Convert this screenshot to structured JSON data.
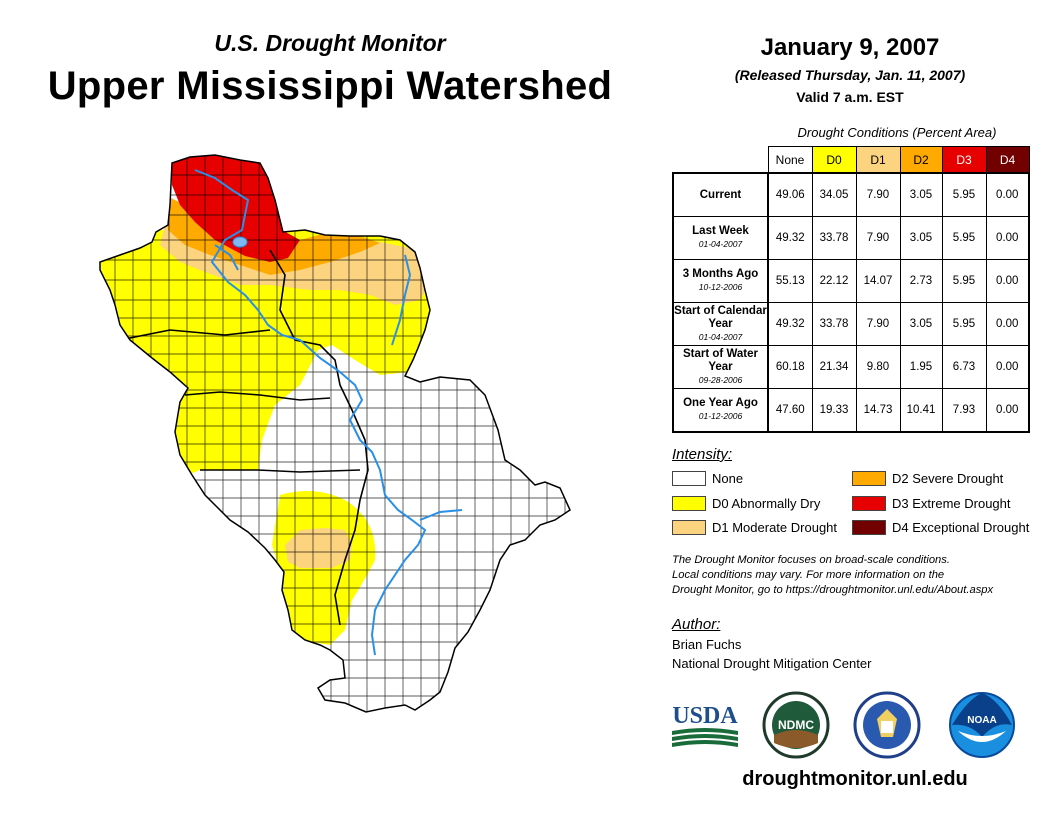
{
  "header": {
    "subtitle": "U.S. Drought Monitor",
    "title": "Upper Mississippi Watershed",
    "date": "January 9, 2007",
    "released": "(Released Thursday, Jan. 11, 2007)",
    "valid": "Valid 7 a.m. EST"
  },
  "table": {
    "caption": "Drought Conditions (Percent Area)",
    "columns": [
      "None",
      "D0",
      "D1",
      "D2",
      "D3",
      "D4"
    ],
    "column_colors": [
      "#ffffff",
      "#ffff00",
      "#fcd37f",
      "#ffaa00",
      "#e60000",
      "#730000"
    ],
    "rows": [
      {
        "label": "Current",
        "date": "",
        "values": [
          "49.06",
          "34.05",
          "7.90",
          "3.05",
          "5.95",
          "0.00"
        ]
      },
      {
        "label": "Last Week",
        "date": "01-04-2007",
        "values": [
          "49.32",
          "33.78",
          "7.90",
          "3.05",
          "5.95",
          "0.00"
        ]
      },
      {
        "label": "3 Months Ago",
        "date": "10-12-2006",
        "values": [
          "55.13",
          "22.12",
          "14.07",
          "2.73",
          "5.95",
          "0.00"
        ]
      },
      {
        "label": "Start of Calendar Year",
        "date": "01-04-2007",
        "values": [
          "49.32",
          "33.78",
          "7.90",
          "3.05",
          "5.95",
          "0.00"
        ]
      },
      {
        "label": "Start of Water Year",
        "date": "09-28-2006",
        "values": [
          "60.18",
          "21.34",
          "9.80",
          "1.95",
          "6.73",
          "0.00"
        ]
      },
      {
        "label": "One Year Ago",
        "date": "01-12-2006",
        "values": [
          "47.60",
          "19.33",
          "14.73",
          "10.41",
          "7.93",
          "0.00"
        ]
      }
    ]
  },
  "legend": {
    "heading": "Intensity:",
    "items": [
      {
        "label": "None",
        "color": "#ffffff"
      },
      {
        "label": "D0 Abnormally Dry",
        "color": "#ffff00"
      },
      {
        "label": "D1 Moderate Drought",
        "color": "#fcd37f"
      },
      {
        "label": "D2 Severe Drought",
        "color": "#ffaa00"
      },
      {
        "label": "D3 Extreme Drought",
        "color": "#e60000"
      },
      {
        "label": "D4 Exceptional Drought",
        "color": "#730000"
      }
    ]
  },
  "note": {
    "line1": "The Drought Monitor focuses on broad-scale conditions.",
    "line2": "Local conditions may vary. For more information on the",
    "line3": "Drought Monitor, go to https://droughtmonitor.unl.edu/About.aspx"
  },
  "author": {
    "heading": "Author:",
    "name": "Brian Fuchs",
    "org": "National Drought Mitigation Center"
  },
  "logos": {
    "usda": "USDA",
    "ndmc": "NDMC",
    "noaa": "NOAA"
  },
  "website": "droughtmonitor.unl.edu",
  "colors": {
    "river": "#2a8fe8",
    "county_line": "#000000"
  }
}
